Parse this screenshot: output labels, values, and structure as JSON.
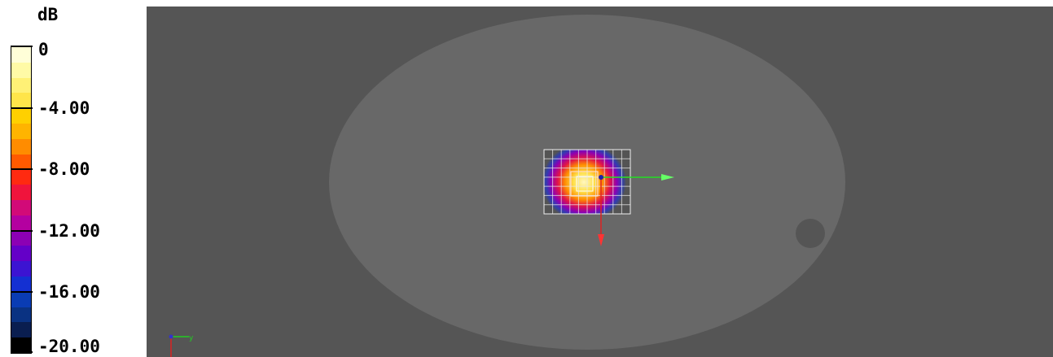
{
  "legend": {
    "unit": "dB",
    "ticks": [
      {
        "label": "0",
        "value": 0
      },
      {
        "label": "-4.00",
        "value": -4
      },
      {
        "label": "-8.00",
        "value": -8
      },
      {
        "label": "-12.00",
        "value": -12
      },
      {
        "label": "-16.00",
        "value": -16
      },
      {
        "label": "-20.00",
        "value": -20
      }
    ],
    "range": [
      -20,
      0
    ],
    "colors": [
      "#fffed8",
      "#fffaa6",
      "#fff176",
      "#ffe54a",
      "#ffd000",
      "#ffb400",
      "#ff8c00",
      "#ff5a00",
      "#ff2a10",
      "#f0143c",
      "#d20a78",
      "#b400a0",
      "#8c00b4",
      "#6400c8",
      "#3c14d2",
      "#1430d2",
      "#0a3cb4",
      "#0a3282",
      "#0a1e50",
      "#000000"
    ]
  },
  "viewport": {
    "background": "#555555",
    "phantom_color": "#686868",
    "axes_triad": {
      "x": "red",
      "y": "green",
      "z": "blue"
    }
  }
}
